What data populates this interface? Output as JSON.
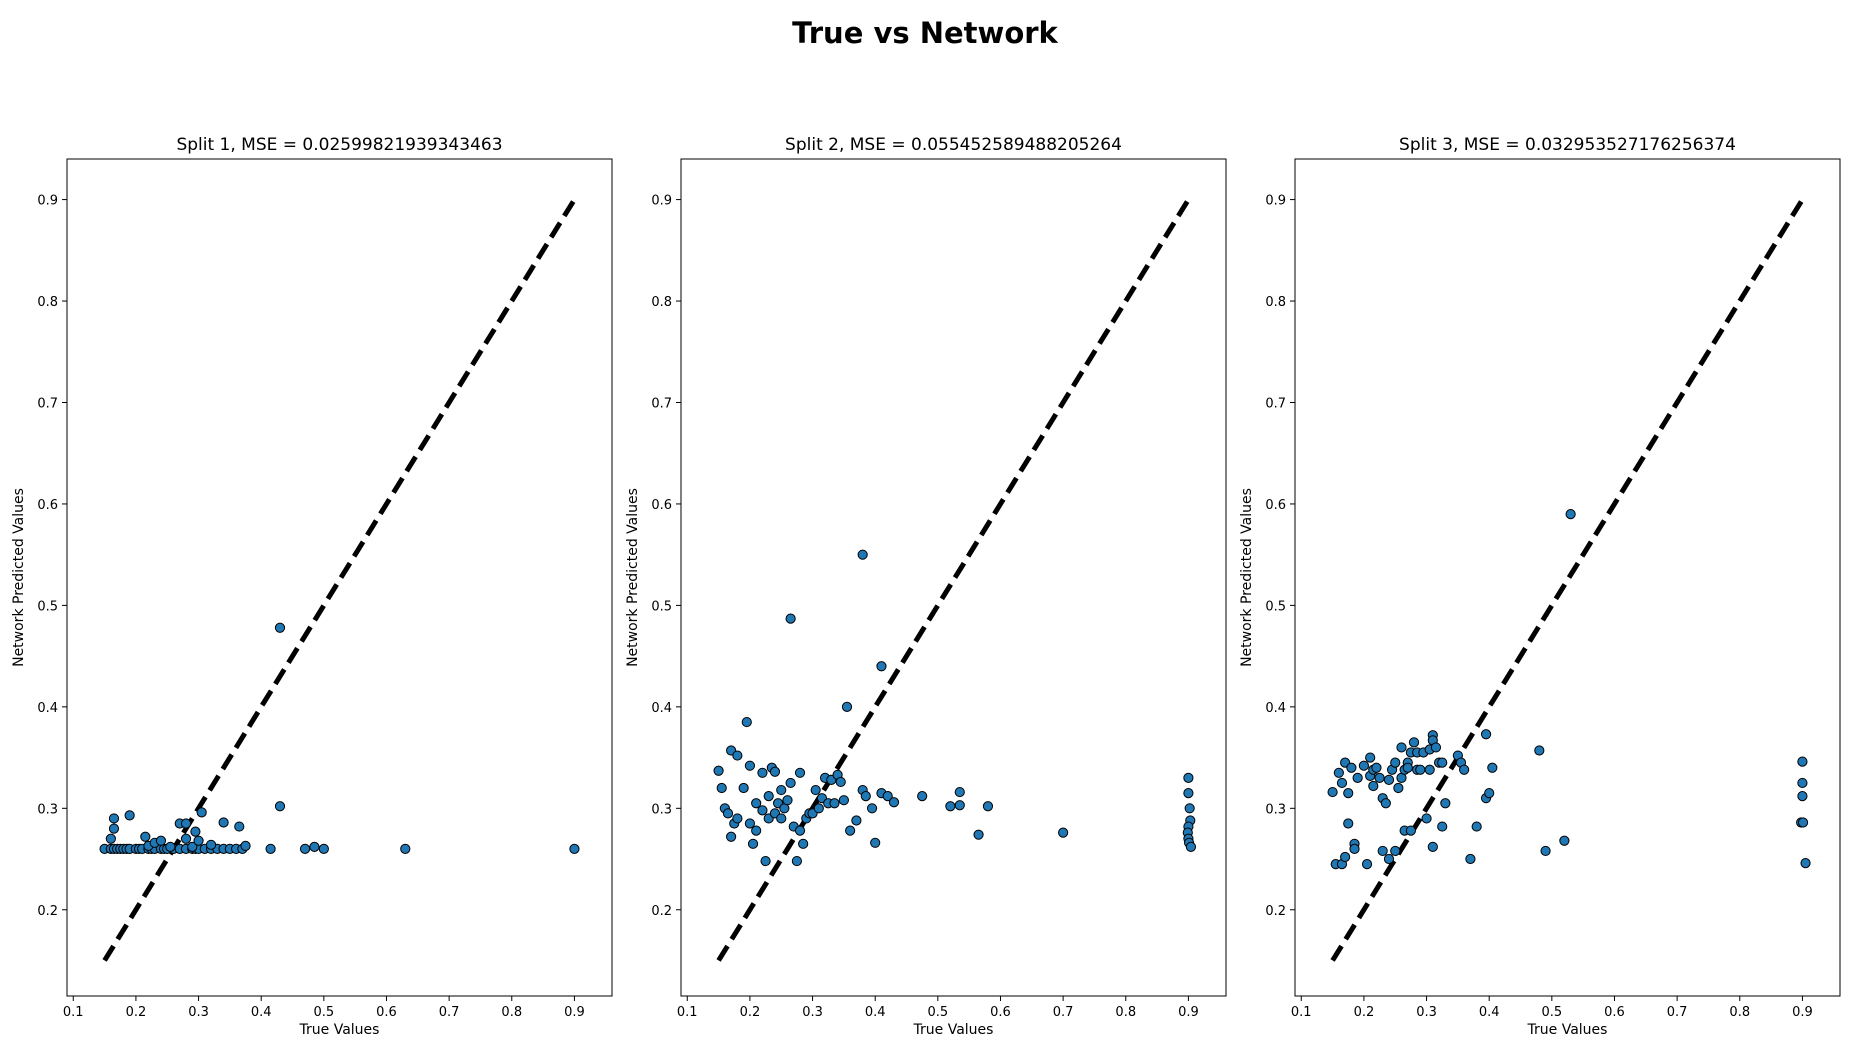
{
  "figure": {
    "title": "True vs Network"
  },
  "colors": {
    "marker_fill": "#1f77b4",
    "marker_edge": "#000000",
    "identity_line": "#000000"
  },
  "chart_data": [
    {
      "type": "scatter",
      "title": "Split 1, MSE = 0.02599821939343463",
      "xlabel": "True Values",
      "ylabel": "Network Predicted Values",
      "xlim": [
        0.09,
        0.96
      ],
      "ylim": [
        0.115,
        0.94
      ],
      "xticks": [
        0.1,
        0.2,
        0.3,
        0.4,
        0.5,
        0.6,
        0.7,
        0.8,
        0.9
      ],
      "yticks": [
        0.2,
        0.3,
        0.4,
        0.5,
        0.6,
        0.7,
        0.8,
        0.9
      ],
      "identity_line": [
        [
          0.15,
          0.15
        ],
        [
          0.9,
          0.9
        ]
      ],
      "points": [
        [
          0.15,
          0.26
        ],
        [
          0.16,
          0.26
        ],
        [
          0.165,
          0.26
        ],
        [
          0.17,
          0.26
        ],
        [
          0.175,
          0.26
        ],
        [
          0.18,
          0.26
        ],
        [
          0.185,
          0.26
        ],
        [
          0.19,
          0.26
        ],
        [
          0.2,
          0.26
        ],
        [
          0.205,
          0.26
        ],
        [
          0.21,
          0.26
        ],
        [
          0.22,
          0.26
        ],
        [
          0.225,
          0.26
        ],
        [
          0.23,
          0.26
        ],
        [
          0.24,
          0.26
        ],
        [
          0.245,
          0.26
        ],
        [
          0.25,
          0.26
        ],
        [
          0.26,
          0.26
        ],
        [
          0.27,
          0.26
        ],
        [
          0.28,
          0.26
        ],
        [
          0.29,
          0.26
        ],
        [
          0.295,
          0.26
        ],
        [
          0.3,
          0.26
        ],
        [
          0.31,
          0.26
        ],
        [
          0.32,
          0.26
        ],
        [
          0.33,
          0.26
        ],
        [
          0.34,
          0.26
        ],
        [
          0.35,
          0.26
        ],
        [
          0.36,
          0.26
        ],
        [
          0.37,
          0.26
        ],
        [
          0.16,
          0.27
        ],
        [
          0.165,
          0.28
        ],
        [
          0.165,
          0.29
        ],
        [
          0.19,
          0.293
        ],
        [
          0.215,
          0.272
        ],
        [
          0.22,
          0.263
        ],
        [
          0.23,
          0.266
        ],
        [
          0.24,
          0.268
        ],
        [
          0.255,
          0.262
        ],
        [
          0.27,
          0.285
        ],
        [
          0.28,
          0.285
        ],
        [
          0.28,
          0.27
        ],
        [
          0.29,
          0.262
        ],
        [
          0.295,
          0.277
        ],
        [
          0.3,
          0.268
        ],
        [
          0.305,
          0.296
        ],
        [
          0.32,
          0.264
        ],
        [
          0.34,
          0.286
        ],
        [
          0.365,
          0.282
        ],
        [
          0.375,
          0.263
        ],
        [
          0.415,
          0.26
        ],
        [
          0.43,
          0.302
        ],
        [
          0.43,
          0.478
        ],
        [
          0.47,
          0.26
        ],
        [
          0.485,
          0.262
        ],
        [
          0.5,
          0.26
        ],
        [
          0.63,
          0.26
        ],
        [
          0.9,
          0.26
        ]
      ]
    },
    {
      "type": "scatter",
      "title": "Split 2, MSE = 0.055452589488205264",
      "xlabel": "True Values",
      "ylabel": "Network Predicted Values",
      "xlim": [
        0.09,
        0.96
      ],
      "ylim": [
        0.115,
        0.94
      ],
      "xticks": [
        0.1,
        0.2,
        0.3,
        0.4,
        0.5,
        0.6,
        0.7,
        0.8,
        0.9
      ],
      "yticks": [
        0.2,
        0.3,
        0.4,
        0.5,
        0.6,
        0.7,
        0.8,
        0.9
      ],
      "identity_line": [
        [
          0.15,
          0.15
        ],
        [
          0.9,
          0.9
        ]
      ],
      "points": [
        [
          0.15,
          0.337
        ],
        [
          0.155,
          0.32
        ],
        [
          0.16,
          0.3
        ],
        [
          0.165,
          0.295
        ],
        [
          0.17,
          0.272
        ],
        [
          0.175,
          0.285
        ],
        [
          0.17,
          0.357
        ],
        [
          0.18,
          0.352
        ],
        [
          0.18,
          0.29
        ],
        [
          0.19,
          0.32
        ],
        [
          0.195,
          0.385
        ],
        [
          0.2,
          0.285
        ],
        [
          0.2,
          0.342
        ],
        [
          0.205,
          0.265
        ],
        [
          0.21,
          0.305
        ],
        [
          0.21,
          0.278
        ],
        [
          0.22,
          0.298
        ],
        [
          0.22,
          0.335
        ],
        [
          0.225,
          0.248
        ],
        [
          0.23,
          0.29
        ],
        [
          0.23,
          0.312
        ],
        [
          0.235,
          0.34
        ],
        [
          0.24,
          0.336
        ],
        [
          0.24,
          0.295
        ],
        [
          0.245,
          0.305
        ],
        [
          0.25,
          0.29
        ],
        [
          0.25,
          0.318
        ],
        [
          0.255,
          0.3
        ],
        [
          0.26,
          0.308
        ],
        [
          0.265,
          0.325
        ],
        [
          0.265,
          0.487
        ],
        [
          0.27,
          0.282
        ],
        [
          0.275,
          0.248
        ],
        [
          0.28,
          0.335
        ],
        [
          0.28,
          0.278
        ],
        [
          0.285,
          0.265
        ],
        [
          0.29,
          0.29
        ],
        [
          0.295,
          0.295
        ],
        [
          0.3,
          0.295
        ],
        [
          0.305,
          0.318
        ],
        [
          0.31,
          0.3
        ],
        [
          0.315,
          0.31
        ],
        [
          0.32,
          0.33
        ],
        [
          0.325,
          0.305
        ],
        [
          0.33,
          0.328
        ],
        [
          0.335,
          0.305
        ],
        [
          0.34,
          0.333
        ],
        [
          0.345,
          0.326
        ],
        [
          0.35,
          0.308
        ],
        [
          0.355,
          0.4
        ],
        [
          0.36,
          0.278
        ],
        [
          0.37,
          0.288
        ],
        [
          0.38,
          0.55
        ],
        [
          0.38,
          0.318
        ],
        [
          0.385,
          0.312
        ],
        [
          0.395,
          0.3
        ],
        [
          0.4,
          0.266
        ],
        [
          0.41,
          0.44
        ],
        [
          0.41,
          0.315
        ],
        [
          0.42,
          0.312
        ],
        [
          0.43,
          0.306
        ],
        [
          0.475,
          0.312
        ],
        [
          0.52,
          0.302
        ],
        [
          0.535,
          0.303
        ],
        [
          0.535,
          0.316
        ],
        [
          0.565,
          0.274
        ],
        [
          0.58,
          0.302
        ],
        [
          0.7,
          0.276
        ],
        [
          0.9,
          0.33
        ],
        [
          0.9,
          0.315
        ],
        [
          0.902,
          0.3
        ],
        [
          0.903,
          0.288
        ],
        [
          0.9,
          0.282
        ],
        [
          0.899,
          0.276
        ],
        [
          0.9,
          0.27
        ],
        [
          0.901,
          0.266
        ],
        [
          0.904,
          0.262
        ]
      ]
    },
    {
      "type": "scatter",
      "title": "Split 3, MSE = 0.032953527176256374",
      "xlabel": "True Values",
      "ylabel": "Network Predicted Values",
      "xlim": [
        0.09,
        0.96
      ],
      "ylim": [
        0.115,
        0.94
      ],
      "xticks": [
        0.1,
        0.2,
        0.3,
        0.4,
        0.5,
        0.6,
        0.7,
        0.8,
        0.9
      ],
      "yticks": [
        0.2,
        0.3,
        0.4,
        0.5,
        0.6,
        0.7,
        0.8,
        0.9
      ],
      "identity_line": [
        [
          0.15,
          0.15
        ],
        [
          0.9,
          0.9
        ]
      ],
      "points": [
        [
          0.15,
          0.316
        ],
        [
          0.155,
          0.245
        ],
        [
          0.16,
          0.335
        ],
        [
          0.165,
          0.325
        ],
        [
          0.165,
          0.245
        ],
        [
          0.17,
          0.345
        ],
        [
          0.17,
          0.252
        ],
        [
          0.175,
          0.285
        ],
        [
          0.175,
          0.315
        ],
        [
          0.18,
          0.34
        ],
        [
          0.185,
          0.265
        ],
        [
          0.185,
          0.26
        ],
        [
          0.19,
          0.33
        ],
        [
          0.2,
          0.342
        ],
        [
          0.205,
          0.245
        ],
        [
          0.21,
          0.35
        ],
        [
          0.21,
          0.332
        ],
        [
          0.215,
          0.322
        ],
        [
          0.215,
          0.338
        ],
        [
          0.22,
          0.34
        ],
        [
          0.225,
          0.33
        ],
        [
          0.23,
          0.258
        ],
        [
          0.23,
          0.31
        ],
        [
          0.235,
          0.305
        ],
        [
          0.24,
          0.328
        ],
        [
          0.24,
          0.25
        ],
        [
          0.245,
          0.338
        ],
        [
          0.25,
          0.345
        ],
        [
          0.25,
          0.258
        ],
        [
          0.255,
          0.32
        ],
        [
          0.26,
          0.36
        ],
        [
          0.26,
          0.33
        ],
        [
          0.265,
          0.338
        ],
        [
          0.265,
          0.278
        ],
        [
          0.27,
          0.345
        ],
        [
          0.27,
          0.34
        ],
        [
          0.275,
          0.278
        ],
        [
          0.275,
          0.355
        ],
        [
          0.28,
          0.365
        ],
        [
          0.285,
          0.338
        ],
        [
          0.285,
          0.355
        ],
        [
          0.29,
          0.338
        ],
        [
          0.295,
          0.355
        ],
        [
          0.3,
          0.29
        ],
        [
          0.305,
          0.358
        ],
        [
          0.305,
          0.338
        ],
        [
          0.31,
          0.372
        ],
        [
          0.31,
          0.367
        ],
        [
          0.31,
          0.262
        ],
        [
          0.315,
          0.36
        ],
        [
          0.32,
          0.345
        ],
        [
          0.325,
          0.282
        ],
        [
          0.325,
          0.345
        ],
        [
          0.33,
          0.305
        ],
        [
          0.35,
          0.352
        ],
        [
          0.355,
          0.345
        ],
        [
          0.36,
          0.338
        ],
        [
          0.37,
          0.25
        ],
        [
          0.38,
          0.282
        ],
        [
          0.395,
          0.31
        ],
        [
          0.395,
          0.373
        ],
        [
          0.4,
          0.315
        ],
        [
          0.405,
          0.34
        ],
        [
          0.48,
          0.357
        ],
        [
          0.49,
          0.258
        ],
        [
          0.52,
          0.268
        ],
        [
          0.53,
          0.59
        ],
        [
          0.9,
          0.346
        ],
        [
          0.9,
          0.325
        ],
        [
          0.9,
          0.312
        ],
        [
          0.898,
          0.286
        ],
        [
          0.901,
          0.286
        ],
        [
          0.905,
          0.246
        ]
      ]
    }
  ]
}
